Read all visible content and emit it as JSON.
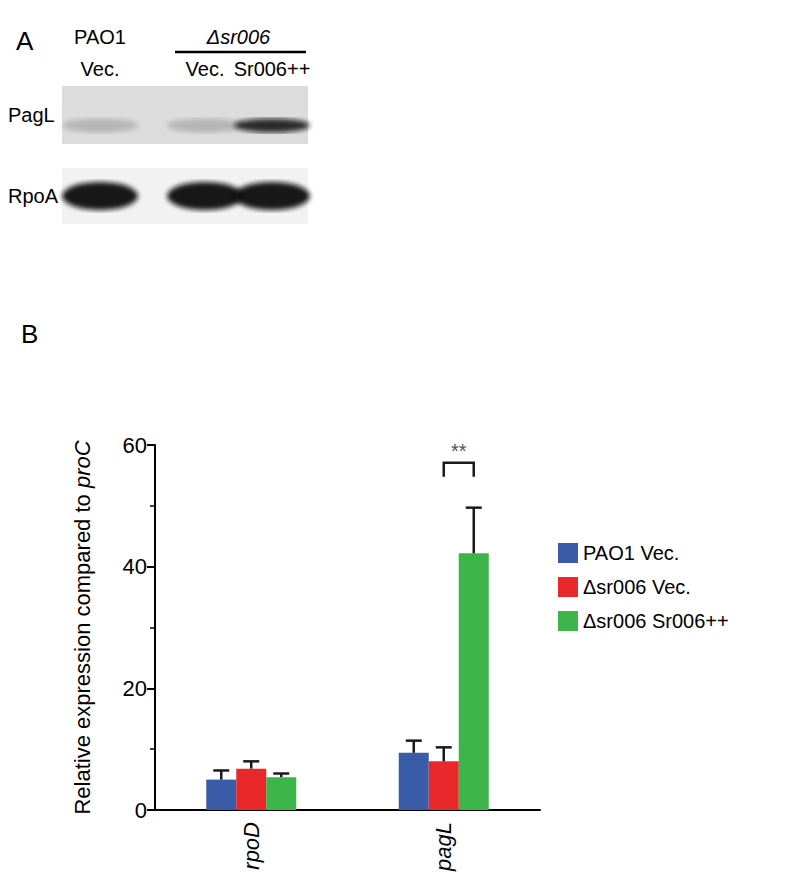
{
  "panel_a": {
    "label": "A",
    "lanes": [
      {
        "strain": "PAO1",
        "plasmid": "Vec."
      },
      {
        "strain": "Δsr006",
        "plasmid": "Vec."
      },
      {
        "strain": "Δsr006",
        "plasmid": "Sr006++"
      }
    ],
    "rows": [
      "PagL",
      "RpoA"
    ]
  },
  "chart_data": {
    "type": "bar",
    "title": "B",
    "y_label": "Relative expression compared to proC",
    "categories": [
      "rpoD",
      "pagL"
    ],
    "series": [
      {
        "name": "PAO1 Vec.",
        "color": "#3a5ca8",
        "values": [
          5.0,
          9.4
        ],
        "errors": [
          1.5,
          2.0
        ]
      },
      {
        "name": "Δsr006 Vec.",
        "color": "#e8282b",
        "values": [
          6.8,
          8.0
        ],
        "errors": [
          1.2,
          2.3
        ]
      },
      {
        "name": "Δsr006 Sr006++",
        "color": "#3db54a",
        "values": [
          5.4,
          42.2
        ],
        "errors": [
          0.6,
          7.5
        ]
      }
    ],
    "annotations": [
      {
        "text": "**",
        "category": "pagL",
        "series": [
          "Δsr006 Vec.",
          "Δsr006 Sr006++"
        ]
      }
    ],
    "ylim": [
      0,
      60
    ],
    "yticks": [
      0,
      20,
      40,
      60
    ],
    "grid": false,
    "legend": "right"
  }
}
